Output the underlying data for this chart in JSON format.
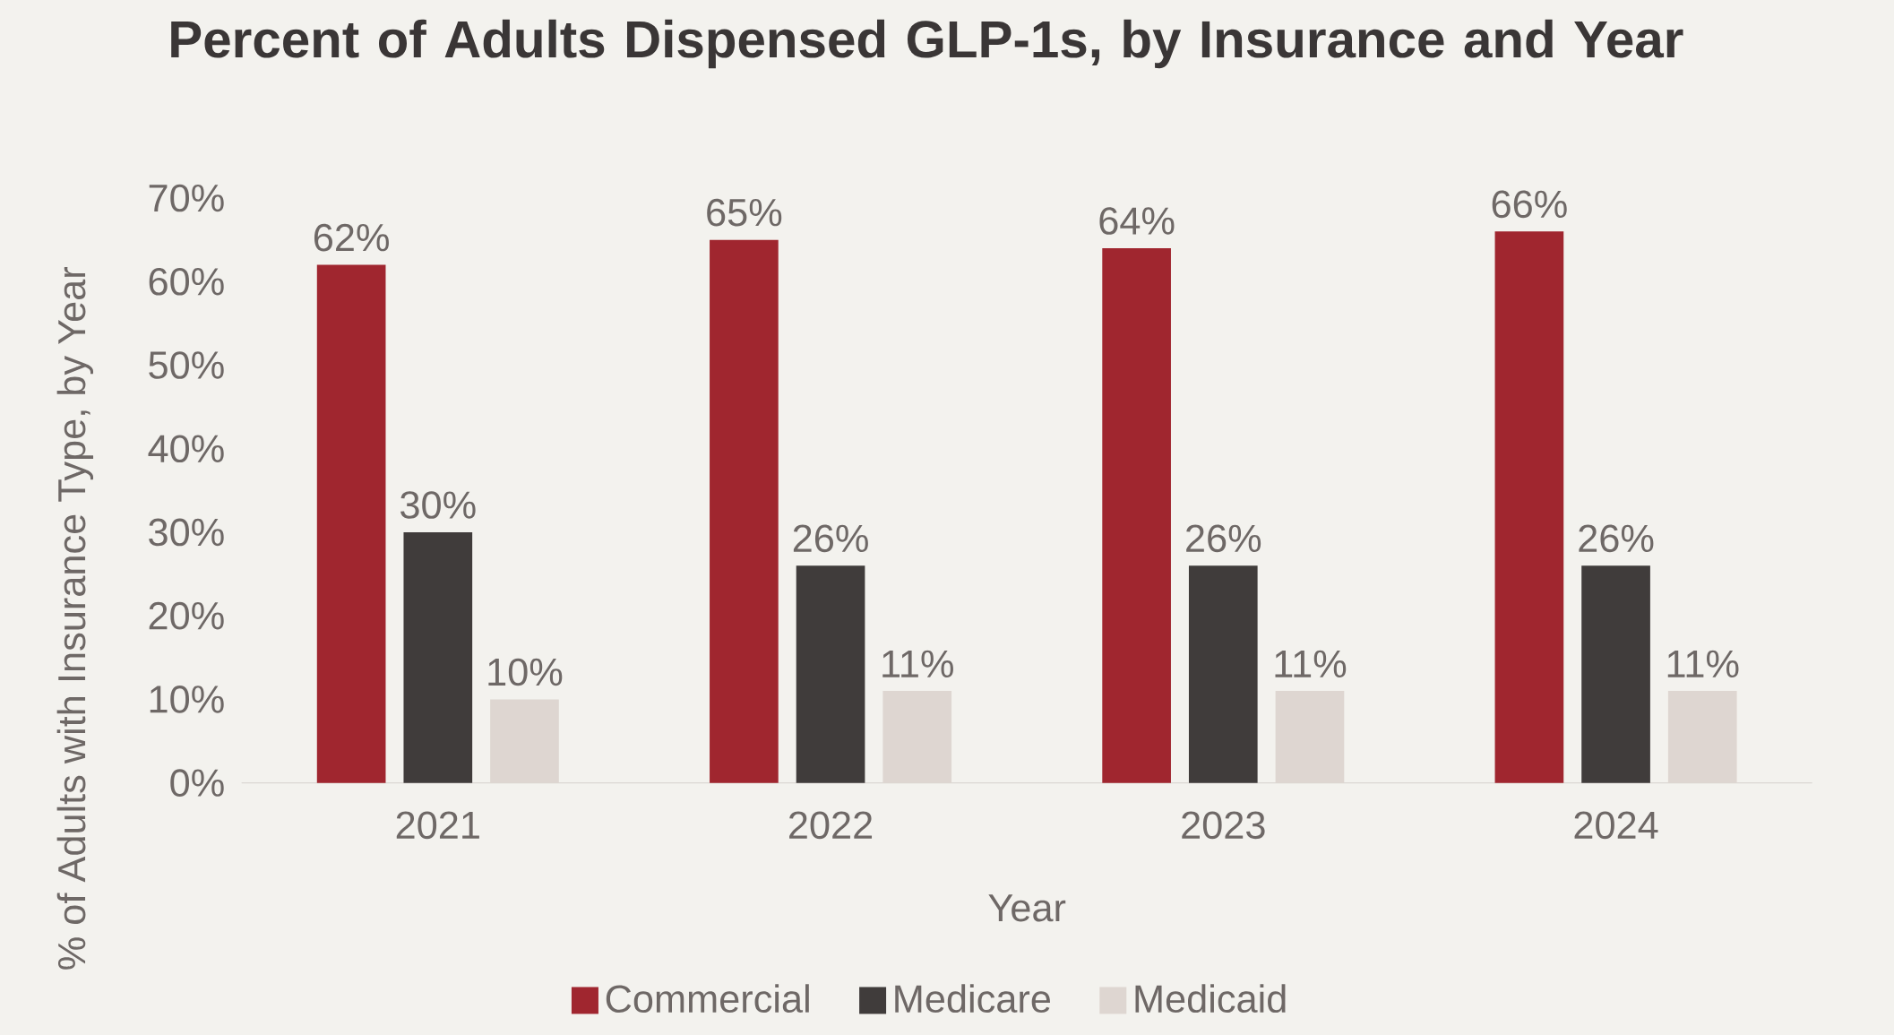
{
  "chart_data": {
    "type": "bar",
    "title": "Percent of Adults Dispensed GLP-1s, by Insurance and Year",
    "xlabel": "Year",
    "ylabel": "% of Adults with Insurance Type, by Year",
    "categories": [
      "2021",
      "2022",
      "2023",
      "2024"
    ],
    "series": [
      {
        "name": "Commercial",
        "color": "#a0262f",
        "values": [
          62,
          65,
          64,
          66
        ],
        "value_labels": [
          "62%",
          "65%",
          "64%",
          "66%"
        ]
      },
      {
        "name": "Medicare",
        "color": "#403c3b",
        "values": [
          30,
          26,
          26,
          26
        ],
        "value_labels": [
          "30%",
          "26%",
          "26%",
          "26%"
        ]
      },
      {
        "name": "Medicaid",
        "color": "#ded6d1",
        "values": [
          10,
          11,
          11,
          11
        ],
        "value_labels": [
          "10%",
          "11%",
          "11%",
          "11%"
        ]
      }
    ],
    "ylim": [
      0,
      70
    ],
    "yticks": [
      {
        "value": 0,
        "label": "0%"
      },
      {
        "value": 10,
        "label": "10%"
      },
      {
        "value": 20,
        "label": "20%"
      },
      {
        "value": 30,
        "label": "30%"
      },
      {
        "value": 40,
        "label": "40%"
      },
      {
        "value": 50,
        "label": "50%"
      },
      {
        "value": 60,
        "label": "60%"
      },
      {
        "value": 70,
        "label": "70%"
      }
    ],
    "grid": false,
    "legend": "bottom"
  }
}
